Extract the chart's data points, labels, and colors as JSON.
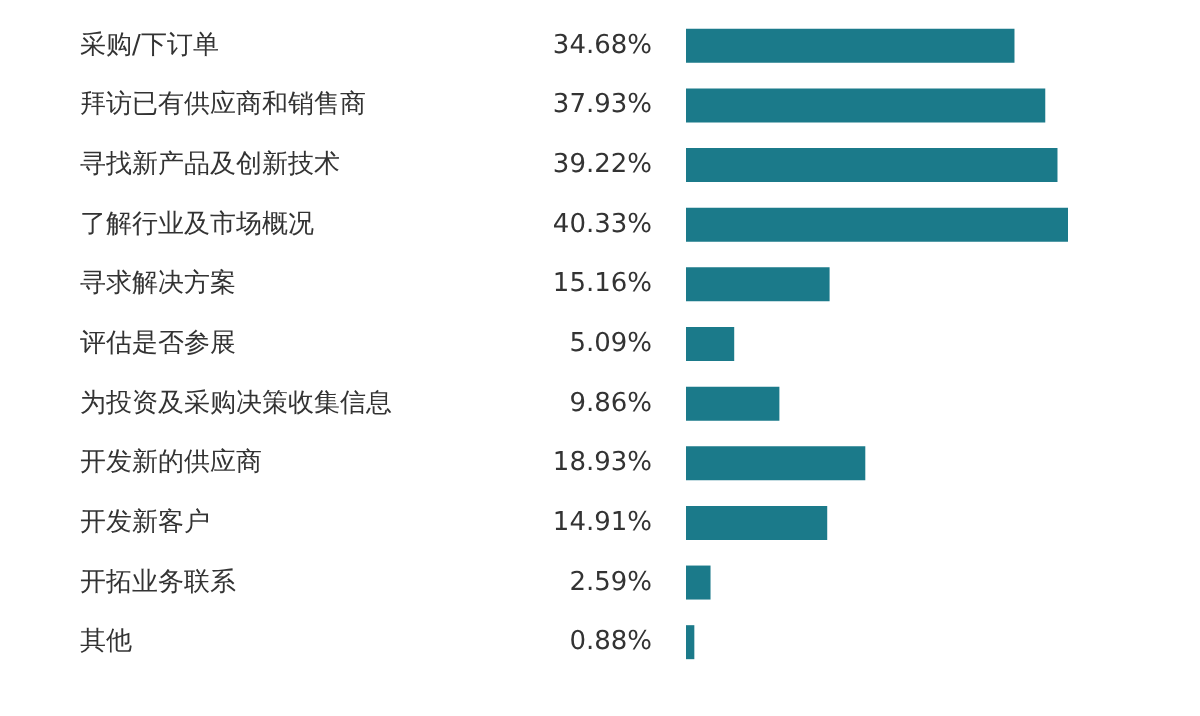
{
  "chart_data": {
    "type": "bar",
    "orientation": "horizontal",
    "categories": [
      "采购/下订单",
      "拜访已有供应商和销售商",
      "寻找新产品及创新技术",
      "了解行业及市场概况",
      "寻求解决方案",
      "评估是否参展",
      "为投资及采购决策收集信息",
      "开发新的供应商",
      "开发新客户",
      "开拓业务联系",
      "其他"
    ],
    "values": [
      34.68,
      37.93,
      39.22,
      40.33,
      15.16,
      5.09,
      9.86,
      18.93,
      14.91,
      2.59,
      0.88
    ],
    "value_labels": [
      "34.68%",
      "37.93%",
      "39.22%",
      "40.33%",
      "15.16%",
      "5.09%",
      "9.86%",
      "18.93%",
      "14.91%",
      "2.59%",
      "0.88%"
    ],
    "color": "#1b7a8a",
    "xlim": [
      0,
      40.33
    ],
    "tick_labels": "y"
  }
}
